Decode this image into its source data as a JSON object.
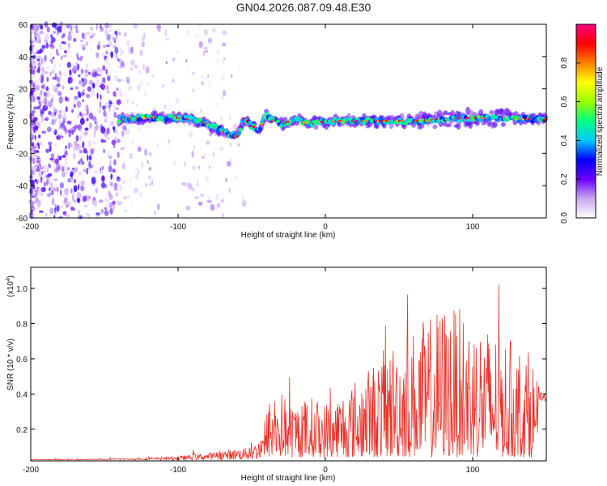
{
  "title": "GN04.2026.087.09.48.E30",
  "chart_data": [
    {
      "type": "heatmap",
      "name": "spectrogram",
      "xlabel": "Height of straight line (km)",
      "ylabel": "Frequency (Hz)",
      "xlim": [
        -200,
        150
      ],
      "ylim": [
        -60,
        60
      ],
      "xticks": [
        -200,
        -100,
        0,
        100
      ],
      "xtick_labels": [
        "-200",
        "-100",
        "0",
        "100"
      ],
      "yticks": [
        60,
        40,
        20,
        0,
        -20,
        -40,
        -60
      ],
      "ytick_labels": [
        "60",
        "40",
        "20",
        "0",
        "-20",
        "-40",
        "-60"
      ],
      "colorbar": {
        "label": "Normalized spectral amplitude",
        "range": [
          0,
          1
        ],
        "ticks": [
          0.0,
          0.2,
          0.4,
          0.6,
          0.8
        ],
        "tick_labels": [
          "0.0",
          "0.2",
          "0.4",
          "0.6",
          "0.8"
        ],
        "colormap": [
          "#ffffff",
          "#c9a8f0",
          "#6a00ff",
          "#0000ff",
          "#00c8ff",
          "#00ff80",
          "#9bff00",
          "#ffff00",
          "#ff8000",
          "#ff0000",
          "#ff0080"
        ]
      },
      "ridge_center_hz": [
        [
          -140,
          1
        ],
        [
          -120,
          2
        ],
        [
          -100,
          2
        ],
        [
          -90,
          1
        ],
        [
          -80,
          -2
        ],
        [
          -70,
          -6
        ],
        [
          -60,
          -10
        ],
        [
          -55,
          2
        ],
        [
          -50,
          -3
        ],
        [
          -45,
          -5
        ],
        [
          -40,
          4
        ],
        [
          -35,
          0
        ],
        [
          -30,
          -2
        ],
        [
          -20,
          1
        ],
        [
          -10,
          -2
        ],
        [
          0,
          0
        ],
        [
          20,
          0
        ],
        [
          40,
          0
        ],
        [
          60,
          0
        ],
        [
          80,
          1
        ],
        [
          100,
          2
        ],
        [
          120,
          2
        ],
        [
          150,
          1
        ]
      ]
    },
    {
      "type": "line",
      "name": "snr",
      "xlabel": "Height of straight line (km)",
      "ylabel": "SNR (10 * v/v)",
      "y_scale_label": "(x10",
      "y_scale_exp": "4",
      "xlim": [
        -200,
        150
      ],
      "ylim": [
        0.02,
        1.12
      ],
      "xticks": [
        -200,
        -100,
        0,
        100
      ],
      "xtick_labels": [
        "-200",
        "-100",
        "0",
        "100"
      ],
      "yticks": [
        0.2,
        0.4,
        0.6,
        0.8,
        1.0
      ],
      "ytick_labels": [
        "0.2",
        "0.4",
        "0.6",
        "0.8",
        "1.0"
      ],
      "color": "#e8322a",
      "envelope_x": [
        -200,
        -150,
        -120,
        -100,
        -80,
        -65,
        -50,
        -40,
        -35,
        -30,
        -20,
        -10,
        0,
        10,
        20,
        30,
        40,
        50,
        60,
        70,
        80,
        90,
        100,
        110,
        120,
        130,
        140,
        145,
        150
      ],
      "envelope_y": [
        0.03,
        0.035,
        0.045,
        0.06,
        0.09,
        0.12,
        0.15,
        0.28,
        0.42,
        0.38,
        0.32,
        0.35,
        0.32,
        0.38,
        0.45,
        0.52,
        0.62,
        0.7,
        0.74,
        0.8,
        0.88,
        0.85,
        0.8,
        0.75,
        0.7,
        0.65,
        0.6,
        0.4,
        0.38
      ]
    }
  ]
}
